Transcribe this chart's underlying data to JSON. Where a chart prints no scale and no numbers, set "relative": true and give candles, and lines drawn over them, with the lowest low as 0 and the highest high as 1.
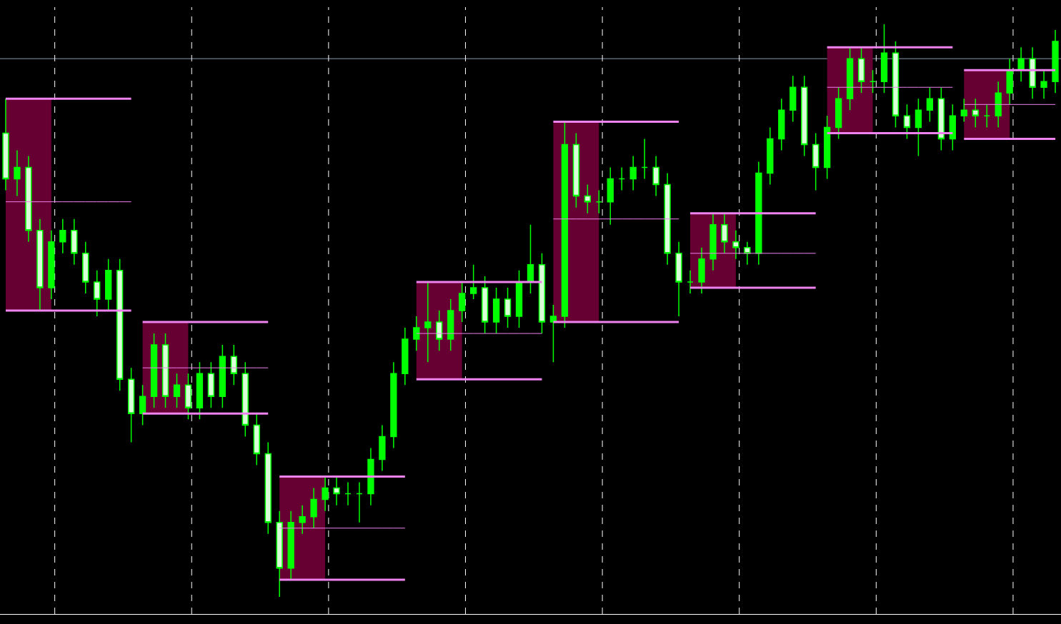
{
  "chart_data": {
    "type": "candlestick",
    "relative": true,
    "categories": [
      null,
      null,
      null,
      null,
      null,
      null,
      null,
      null,
      null,
      null,
      null,
      null,
      null,
      null,
      null,
      null,
      null,
      null,
      null,
      null,
      null,
      null,
      null,
      null,
      null,
      null,
      null,
      null,
      null,
      null,
      null,
      null,
      null,
      null,
      null,
      null,
      null,
      null,
      null,
      null,
      null,
      null,
      null,
      null,
      null,
      null,
      null,
      null,
      null,
      null,
      null,
      null,
      null,
      null,
      null,
      null,
      null,
      null,
      null,
      null,
      null,
      null,
      null,
      null,
      null,
      null,
      null,
      null,
      null,
      null,
      null,
      null,
      null,
      null,
      null,
      null,
      null,
      null,
      null,
      null,
      null,
      null,
      null,
      null,
      null,
      null,
      null,
      null,
      null,
      null,
      null,
      null,
      null
    ],
    "color": "#00ff00",
    "ohlc": [
      [
        0.81,
        0.87,
        0.71,
        0.73
      ],
      [
        0.73,
        0.78,
        0.7,
        0.75
      ],
      [
        0.75,
        0.77,
        0.62,
        0.64
      ],
      [
        0.64,
        0.66,
        0.5,
        0.54
      ],
      [
        0.54,
        0.64,
        0.52,
        0.62
      ],
      [
        0.62,
        0.66,
        0.6,
        0.64
      ],
      [
        0.64,
        0.66,
        0.58,
        0.6
      ],
      [
        0.6,
        0.62,
        0.53,
        0.55
      ],
      [
        0.55,
        0.57,
        0.49,
        0.52
      ],
      [
        0.52,
        0.59,
        0.5,
        0.57
      ],
      [
        0.57,
        0.59,
        0.36,
        0.38
      ],
      [
        0.38,
        0.4,
        0.27,
        0.32
      ],
      [
        0.32,
        0.37,
        0.3,
        0.35
      ],
      [
        0.35,
        0.46,
        0.33,
        0.44
      ],
      [
        0.44,
        0.46,
        0.33,
        0.35
      ],
      [
        0.35,
        0.39,
        0.33,
        0.37
      ],
      [
        0.37,
        0.39,
        0.31,
        0.33
      ],
      [
        0.33,
        0.41,
        0.31,
        0.39
      ],
      [
        0.39,
        0.41,
        0.33,
        0.35
      ],
      [
        0.35,
        0.44,
        0.33,
        0.42
      ],
      [
        0.42,
        0.44,
        0.37,
        0.39
      ],
      [
        0.39,
        0.41,
        0.28,
        0.3
      ],
      [
        0.3,
        0.32,
        0.23,
        0.25
      ],
      [
        0.25,
        0.27,
        0.11,
        0.13
      ],
      [
        0.13,
        0.15,
        0,
        0.05
      ],
      [
        0.05,
        0.15,
        0.03,
        0.13
      ],
      [
        0.13,
        0.16,
        0.11,
        0.14
      ],
      [
        0.14,
        0.19,
        0.12,
        0.17
      ],
      [
        0.17,
        0.21,
        0.15,
        0.19
      ],
      [
        0.19,
        0.21,
        0.16,
        0.18
      ],
      [
        0.18,
        0.2,
        0.16,
        0.18
      ],
      [
        0.18,
        0.2,
        0.13,
        0.18
      ],
      [
        0.18,
        0.26,
        0.16,
        0.24
      ],
      [
        0.24,
        0.3,
        0.22,
        0.28
      ],
      [
        0.28,
        0.41,
        0.26,
        0.39
      ],
      [
        0.39,
        0.47,
        0.37,
        0.45
      ],
      [
        0.45,
        0.49,
        0.43,
        0.47
      ],
      [
        0.47,
        0.55,
        0.41,
        0.48
      ],
      [
        0.48,
        0.5,
        0.43,
        0.45
      ],
      [
        0.45,
        0.52,
        0.43,
        0.5
      ],
      [
        0.5,
        0.55,
        0.48,
        0.53
      ],
      [
        0.53,
        0.58,
        0.52,
        0.54
      ],
      [
        0.54,
        0.56,
        0.46,
        0.48
      ],
      [
        0.48,
        0.54,
        0.46,
        0.52
      ],
      [
        0.52,
        0.54,
        0.47,
        0.49
      ],
      [
        0.49,
        0.57,
        0.47,
        0.55
      ],
      [
        0.55,
        0.65,
        0.53,
        0.58
      ],
      [
        0.58,
        0.6,
        0.46,
        0.48
      ],
      [
        0.48,
        0.51,
        0.41,
        0.49
      ],
      [
        0.49,
        0.83,
        0.47,
        0.79
      ],
      [
        0.79,
        0.81,
        0.68,
        0.7
      ],
      [
        0.7,
        0.72,
        0.67,
        0.69
      ],
      [
        0.69,
        0.71,
        0.67,
        0.69
      ],
      [
        0.69,
        0.75,
        0.65,
        0.73
      ],
      [
        0.73,
        0.75,
        0.71,
        0.73
      ],
      [
        0.73,
        0.77,
        0.71,
        0.75
      ],
      [
        0.75,
        0.8,
        0.73,
        0.75
      ],
      [
        0.75,
        0.77,
        0.7,
        0.72
      ],
      [
        0.72,
        0.74,
        0.58,
        0.6
      ],
      [
        0.6,
        0.62,
        0.49,
        0.55
      ],
      [
        0.55,
        0.57,
        0.53,
        0.55
      ],
      [
        0.55,
        0.61,
        0.53,
        0.59
      ],
      [
        0.59,
        0.67,
        0.57,
        0.65
      ],
      [
        0.65,
        0.67,
        0.6,
        0.62
      ],
      [
        0.62,
        0.64,
        0.59,
        0.61
      ],
      [
        0.61,
        0.62,
        0.58,
        0.6
      ],
      [
        0.6,
        0.76,
        0.58,
        0.74
      ],
      [
        0.74,
        0.82,
        0.72,
        0.8
      ],
      [
        0.8,
        0.87,
        0.78,
        0.85
      ],
      [
        0.85,
        0.91,
        0.83,
        0.89
      ],
      [
        0.89,
        0.91,
        0.77,
        0.79
      ],
      [
        0.79,
        0.81,
        0.71,
        0.75
      ],
      [
        0.75,
        0.84,
        0.73,
        0.82
      ],
      [
        0.82,
        0.89,
        0.8,
        0.87
      ],
      [
        0.87,
        0.96,
        0.85,
        0.94
      ],
      [
        0.94,
        0.96,
        0.88,
        0.9
      ],
      [
        0.9,
        0.92,
        0.88,
        0.9
      ],
      [
        0.9,
        1,
        0.88,
        0.95
      ],
      [
        0.95,
        0.97,
        0.82,
        0.84
      ],
      [
        0.84,
        0.86,
        0.8,
        0.82
      ],
      [
        0.82,
        0.87,
        0.77,
        0.85
      ],
      [
        0.85,
        0.89,
        0.83,
        0.87
      ],
      [
        0.87,
        0.89,
        0.78,
        0.8
      ],
      [
        0.8,
        0.86,
        0.78,
        0.84
      ],
      [
        0.84,
        0.87,
        0.83,
        0.85
      ],
      [
        0.85,
        0.87,
        0.82,
        0.84
      ],
      [
        0.84,
        0.86,
        0.82,
        0.84
      ],
      [
        0.84,
        0.9,
        0.82,
        0.88
      ],
      [
        0.88,
        0.94,
        0.86,
        0.92
      ],
      [
        0.92,
        0.96,
        0.9,
        0.94
      ],
      [
        0.94,
        0.96,
        0.87,
        0.89
      ],
      [
        0.89,
        0.92,
        0.87,
        0.9
      ],
      [
        0.9,
        0.99,
        0.88,
        0.97
      ]
    ],
    "ref_lines": [
      {
        "axis": "y",
        "value": 0.94,
        "color": "#8899aa"
      }
    ],
    "series": [
      {
        "type": "line",
        "color": "#ee82ee",
        "values": [
          0.69,
          0.69,
          0.69,
          0.69,
          0.69,
          0.69,
          0.69,
          0.69,
          0.69,
          0.69,
          0.69,
          0.69,
          null,
          null,
          null,
          null,
          null,
          null,
          null,
          null,
          null,
          null,
          null,
          null,
          0.12,
          0.12,
          0.12,
          0.12,
          0.12,
          0.12,
          0.12,
          0.12,
          0.12,
          0.12,
          0.12,
          0.12,
          null,
          null,
          null,
          null,
          null,
          null,
          null,
          null,
          null,
          null,
          null,
          null,
          0.66,
          0.66,
          0.66,
          0.66,
          0.66,
          0.66,
          0.66,
          0.66,
          0.66,
          0.66,
          0.66,
          0.66,
          null,
          null,
          null,
          null,
          null,
          null,
          null,
          null,
          null,
          null,
          null,
          null,
          0.89,
          0.89,
          0.89,
          0.89,
          0.89,
          0.89,
          0.89,
          0.89,
          0.89,
          0.89,
          0.89,
          0.89,
          null,
          null,
          null,
          null,
          null,
          null,
          null,
          null,
          null
        ],
        "lower": [
          0.5,
          0.5,
          0.5,
          0.5,
          0.5,
          null,
          null,
          null,
          null,
          null,
          null,
          null,
          null,
          null,
          null,
          null,
          null,
          null,
          null,
          null,
          null,
          null,
          null,
          null,
          0.03,
          0.03,
          0.03,
          0.03,
          0.03,
          null,
          null,
          null,
          null,
          null,
          null,
          null,
          null,
          null,
          null,
          null,
          null,
          null,
          null,
          null,
          null,
          null,
          null,
          null,
          0.48,
          0.48,
          0.48,
          0.48,
          0.48,
          null,
          null,
          null,
          null,
          null,
          null,
          null,
          null,
          null,
          null,
          null,
          null,
          null,
          null,
          null,
          null,
          null,
          null,
          null,
          0.81,
          0.81,
          0.81,
          0.81,
          0.81,
          null,
          null,
          null,
          null,
          null,
          null,
          null,
          null,
          null,
          null,
          null,
          null,
          null,
          null,
          null,
          null
        ],
        "upper": [
          0.87,
          0.87,
          0.87,
          0.87,
          0.87,
          null,
          null,
          null,
          null,
          null,
          null,
          null,
          null,
          null,
          null,
          null,
          null,
          null,
          null,
          null,
          null,
          null,
          null,
          null,
          0.21,
          0.21,
          0.21,
          0.21,
          0.21,
          null,
          null,
          null,
          null,
          null,
          null,
          null,
          null,
          null,
          null,
          null,
          null,
          null,
          null,
          null,
          null,
          null,
          null,
          null,
          0.83,
          0.83,
          0.83,
          0.83,
          0.83,
          null,
          null,
          null,
          null,
          null,
          null,
          null,
          null,
          null,
          null,
          null,
          null,
          null,
          null,
          null,
          null,
          null,
          null,
          null,
          0.96,
          0.96,
          0.96,
          0.96,
          0.96,
          null,
          null,
          null,
          null,
          null,
          null,
          null,
          null,
          null,
          null,
          null,
          null,
          null,
          null,
          null,
          null
        ]
      },
      {
        "type": "line",
        "color": "#ee82ee",
        "values": [
          0.87,
          0.87,
          0.87,
          0.87,
          0.87,
          0.87,
          0.87,
          0.87,
          0.87,
          0.87,
          0.87,
          0.87,
          null,
          null,
          null,
          null,
          null,
          null,
          null,
          null,
          null,
          null,
          null,
          null,
          0.21,
          0.21,
          0.21,
          0.21,
          0.21,
          0.21,
          0.21,
          0.21,
          0.21,
          0.21,
          0.21,
          0.21,
          null,
          null,
          null,
          null,
          null,
          null,
          null,
          null,
          null,
          null,
          null,
          null,
          0.83,
          0.83,
          0.83,
          0.83,
          0.83,
          0.83,
          0.83,
          0.83,
          0.83,
          0.83,
          0.83,
          0.83,
          null,
          null,
          null,
          null,
          null,
          null,
          null,
          null,
          null,
          null,
          null,
          null,
          0.96,
          0.96,
          0.96,
          0.96,
          0.96,
          0.96,
          0.96,
          0.96,
          0.96,
          0.96,
          0.96,
          0.96,
          null,
          null,
          null,
          null,
          null,
          null,
          null,
          null,
          null
        ]
      },
      {
        "type": "line",
        "color": "#ee82ee",
        "values": [
          0.5,
          0.5,
          0.5,
          0.5,
          0.5,
          0.5,
          0.5,
          0.5,
          0.5,
          0.5,
          0.5,
          0.5,
          null,
          null,
          null,
          null,
          null,
          null,
          null,
          null,
          null,
          null,
          null,
          null,
          0.03,
          0.03,
          0.03,
          0.03,
          0.03,
          0.03,
          0.03,
          0.03,
          0.03,
          0.03,
          0.03,
          0.03,
          null,
          null,
          null,
          null,
          null,
          null,
          null,
          null,
          null,
          null,
          null,
          null,
          0.48,
          0.48,
          0.48,
          0.48,
          0.48,
          0.48,
          0.48,
          0.48,
          0.48,
          0.48,
          0.48,
          0.48,
          null,
          null,
          null,
          null,
          null,
          null,
          null,
          null,
          null,
          null,
          null,
          null,
          0.81,
          0.81,
          0.81,
          0.81,
          0.81,
          0.81,
          0.81,
          0.81,
          0.81,
          0.81,
          0.81,
          0.81,
          null,
          null,
          null,
          null,
          null,
          null,
          null,
          null,
          null
        ]
      },
      {
        "type": "line",
        "color": "#ee82ee",
        "values": [
          null,
          null,
          null,
          null,
          null,
          null,
          null,
          null,
          null,
          null,
          null,
          null,
          0.4,
          0.4,
          0.4,
          0.4,
          0.4,
          0.4,
          0.4,
          0.4,
          0.4,
          0.4,
          0.4,
          0.4,
          null,
          null,
          null,
          null,
          null,
          null,
          null,
          null,
          null,
          null,
          null,
          null,
          0.46,
          0.46,
          0.46,
          0.46,
          0.46,
          0.46,
          0.46,
          0.46,
          0.46,
          0.46,
          0.46,
          0.46,
          null,
          null,
          null,
          null,
          null,
          null,
          null,
          null,
          null,
          null,
          null,
          null,
          0.6,
          0.6,
          0.6,
          0.6,
          0.6,
          0.6,
          0.6,
          0.6,
          0.6,
          0.6,
          0.6,
          0.6,
          null,
          null,
          null,
          null,
          null,
          null,
          null,
          null,
          null,
          null,
          null,
          null,
          0.86,
          0.86,
          0.86,
          0.86,
          0.86,
          0.86,
          0.86,
          0.86,
          0.86
        ],
        "lower": [
          null,
          null,
          null,
          null,
          null,
          null,
          null,
          null,
          null,
          null,
          null,
          null,
          0.32,
          0.32,
          0.32,
          0.32,
          0.32,
          null,
          null,
          null,
          null,
          null,
          null,
          null,
          null,
          null,
          null,
          null,
          null,
          null,
          null,
          null,
          null,
          null,
          null,
          null,
          0.38,
          0.38,
          0.38,
          0.38,
          0.38,
          null,
          null,
          null,
          null,
          null,
          null,
          null,
          null,
          null,
          null,
          null,
          null,
          null,
          null,
          null,
          null,
          null,
          null,
          null,
          0.54,
          0.54,
          0.54,
          0.54,
          0.54,
          null,
          null,
          null,
          null,
          null,
          null,
          null,
          null,
          null,
          null,
          null,
          null,
          null,
          null,
          null,
          null,
          null,
          null,
          null,
          0.8,
          0.8,
          0.8,
          0.8,
          0.8,
          null,
          null,
          null,
          null
        ],
        "upper": [
          null,
          null,
          null,
          null,
          null,
          null,
          null,
          null,
          null,
          null,
          null,
          null,
          0.48,
          0.48,
          0.48,
          0.48,
          0.48,
          null,
          null,
          null,
          null,
          null,
          null,
          null,
          null,
          null,
          null,
          null,
          null,
          null,
          null,
          null,
          null,
          null,
          null,
          null,
          0.55,
          0.55,
          0.55,
          0.55,
          0.55,
          null,
          null,
          null,
          null,
          null,
          null,
          null,
          null,
          null,
          null,
          null,
          null,
          null,
          null,
          null,
          null,
          null,
          null,
          null,
          0.67,
          0.67,
          0.67,
          0.67,
          0.67,
          null,
          null,
          null,
          null,
          null,
          null,
          null,
          null,
          null,
          null,
          null,
          null,
          null,
          null,
          null,
          null,
          null,
          null,
          null,
          0.92,
          0.92,
          0.92,
          0.92,
          0.92,
          null,
          null,
          null,
          null
        ]
      },
      {
        "type": "line",
        "color": "#ee82ee",
        "values": [
          null,
          null,
          null,
          null,
          null,
          null,
          null,
          null,
          null,
          null,
          null,
          null,
          0.48,
          0.48,
          0.48,
          0.48,
          0.48,
          0.48,
          0.48,
          0.48,
          0.48,
          0.48,
          0.48,
          0.48,
          null,
          null,
          null,
          null,
          null,
          null,
          null,
          null,
          null,
          null,
          null,
          null,
          0.55,
          0.55,
          0.55,
          0.55,
          0.55,
          0.55,
          0.55,
          0.55,
          0.55,
          0.55,
          0.55,
          0.55,
          null,
          null,
          null,
          null,
          null,
          null,
          null,
          null,
          null,
          null,
          null,
          null,
          0.67,
          0.67,
          0.67,
          0.67,
          0.67,
          0.67,
          0.67,
          0.67,
          0.67,
          0.67,
          0.67,
          0.67,
          null,
          null,
          null,
          null,
          null,
          null,
          null,
          null,
          null,
          null,
          null,
          null,
          0.92,
          0.92,
          0.92,
          0.92,
          0.92,
          0.92,
          0.92,
          0.92,
          0.92
        ]
      },
      {
        "type": "line",
        "color": "#ee82ee",
        "values": [
          null,
          null,
          null,
          null,
          null,
          null,
          null,
          null,
          null,
          null,
          null,
          null,
          0.32,
          0.32,
          0.32,
          0.32,
          0.32,
          0.32,
          0.32,
          0.32,
          0.32,
          0.32,
          0.32,
          0.32,
          null,
          null,
          null,
          null,
          null,
          null,
          null,
          null,
          null,
          null,
          null,
          null,
          0.38,
          0.38,
          0.38,
          0.38,
          0.38,
          0.38,
          0.38,
          0.38,
          0.38,
          0.38,
          0.38,
          0.38,
          null,
          null,
          null,
          null,
          null,
          null,
          null,
          null,
          null,
          null,
          null,
          null,
          0.54,
          0.54,
          0.54,
          0.54,
          0.54,
          0.54,
          0.54,
          0.54,
          0.54,
          0.54,
          0.54,
          0.54,
          null,
          null,
          null,
          null,
          null,
          null,
          null,
          null,
          null,
          null,
          null,
          null,
          0.8,
          0.8,
          0.8,
          0.8,
          0.8,
          0.8,
          0.8,
          0.8,
          0.8
        ]
      }
    ]
  }
}
